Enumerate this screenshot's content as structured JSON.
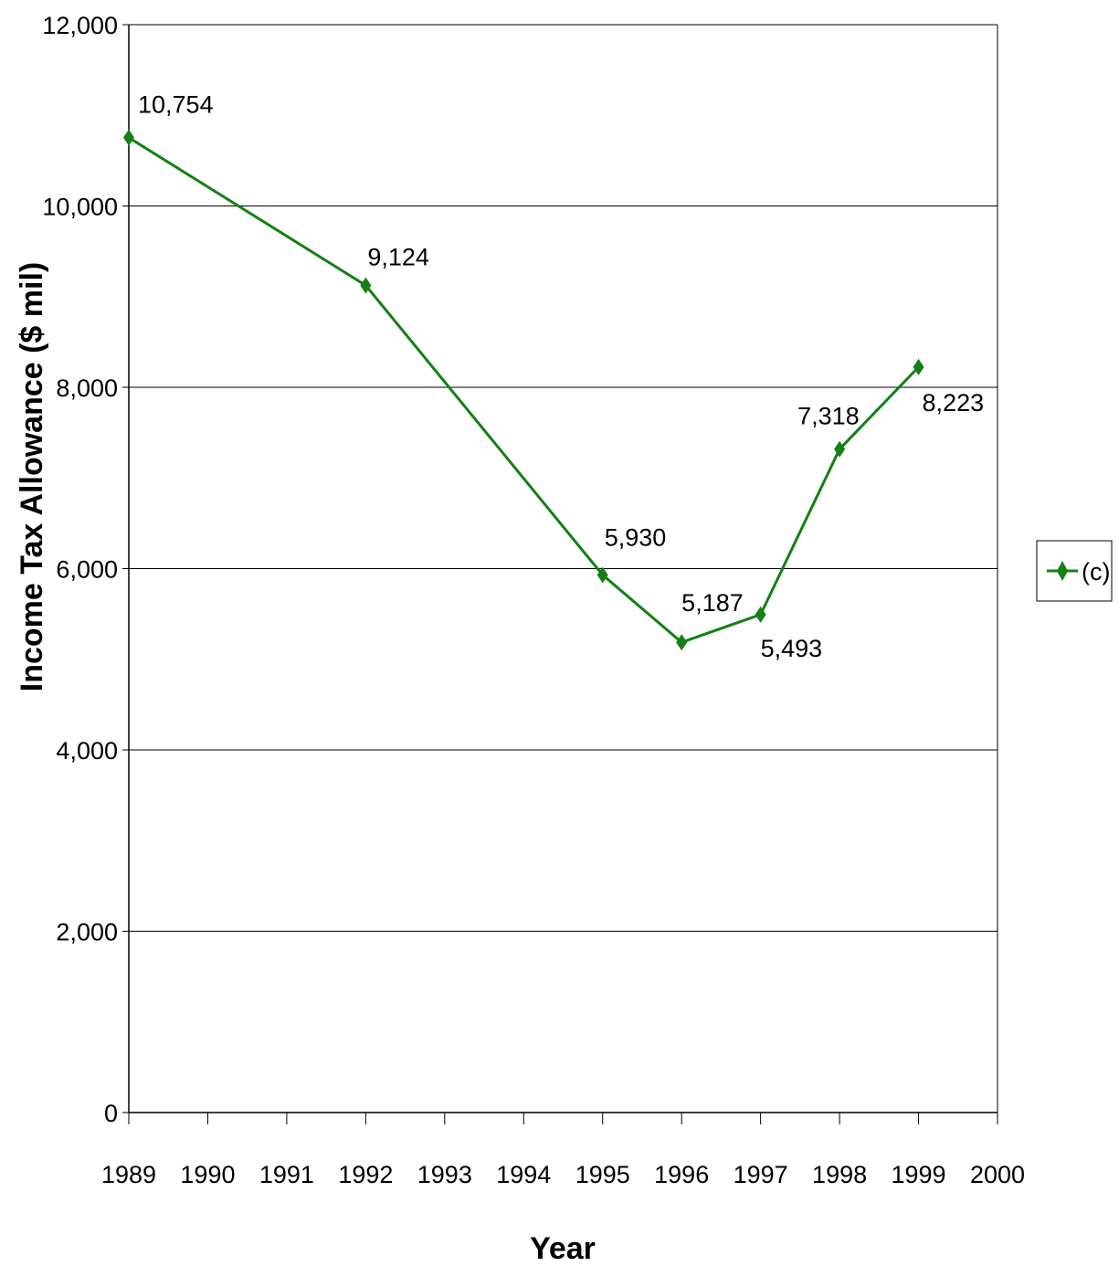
{
  "chart_data": {
    "type": "line",
    "xlabel": "Year",
    "ylabel": "Income Tax Allowance ($ mil)",
    "categories": [
      "1989",
      "1990",
      "1991",
      "1992",
      "1993",
      "1994",
      "1995",
      "1996",
      "1997",
      "1998",
      "1999",
      "2000"
    ],
    "y_ticks": [
      "0",
      "2,000",
      "4,000",
      "6,000",
      "8,000",
      "10,000",
      "12,000"
    ],
    "ylim": [
      0,
      12000
    ],
    "grid": "horizontal",
    "legend_position": "right",
    "series": [
      {
        "name": "(c)",
        "color": "#138013",
        "marker": "diamond",
        "points": [
          {
            "x": "1989",
            "y": 10754,
            "label": "10,754"
          },
          {
            "x": "1992",
            "y": 9124,
            "label": "9,124"
          },
          {
            "x": "1995",
            "y": 5930,
            "label": "5,930"
          },
          {
            "x": "1996",
            "y": 5187,
            "label": "5,187"
          },
          {
            "x": "1997",
            "y": 5493,
            "label": "5,493"
          },
          {
            "x": "1998",
            "y": 7318,
            "label": "7,318"
          },
          {
            "x": "1999",
            "y": 8223,
            "label": "8,223"
          }
        ]
      }
    ]
  }
}
